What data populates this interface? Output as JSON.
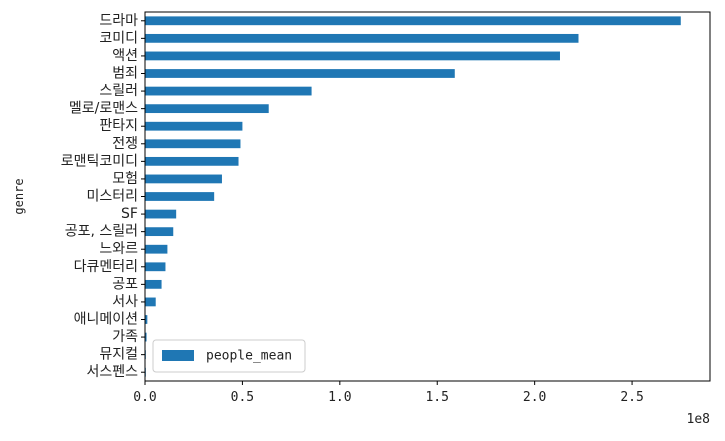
{
  "chart_data": {
    "type": "bar",
    "orientation": "horizontal",
    "categories": [
      "드라마",
      "코미디",
      "액션",
      "범죄",
      "스릴러",
      "멜로/로맨스",
      "판타지",
      "전쟁",
      "로맨틱코미디",
      "모험",
      "미스터리",
      "SF",
      "공포, 스릴러",
      "느와르",
      "다큐멘터리",
      "공포",
      "서사",
      "애니메이션",
      "가족",
      "뮤지컬",
      "서스펜스"
    ],
    "series": [
      {
        "name": "people_mean",
        "values": [
          275000000,
          222500000,
          213000000,
          159000000,
          85500000,
          63500000,
          50000000,
          49000000,
          48000000,
          39500000,
          35500000,
          16000000,
          14500000,
          11500000,
          10500000,
          8500000,
          5500000,
          1200000,
          800000,
          300000,
          100000
        ],
        "color": "#1f77b4"
      }
    ],
    "xlim": [
      0,
      290000000
    ],
    "xticks": [
      0,
      50000000,
      100000000,
      150000000,
      200000000,
      250000000
    ],
    "xtick_labels": [
      "0.0",
      "0.5",
      "1.0",
      "1.5",
      "2.0",
      "2.5"
    ],
    "x_offset_label": "1e8",
    "ylabel": "genre",
    "legend_position": "lower-left",
    "grid": false
  }
}
